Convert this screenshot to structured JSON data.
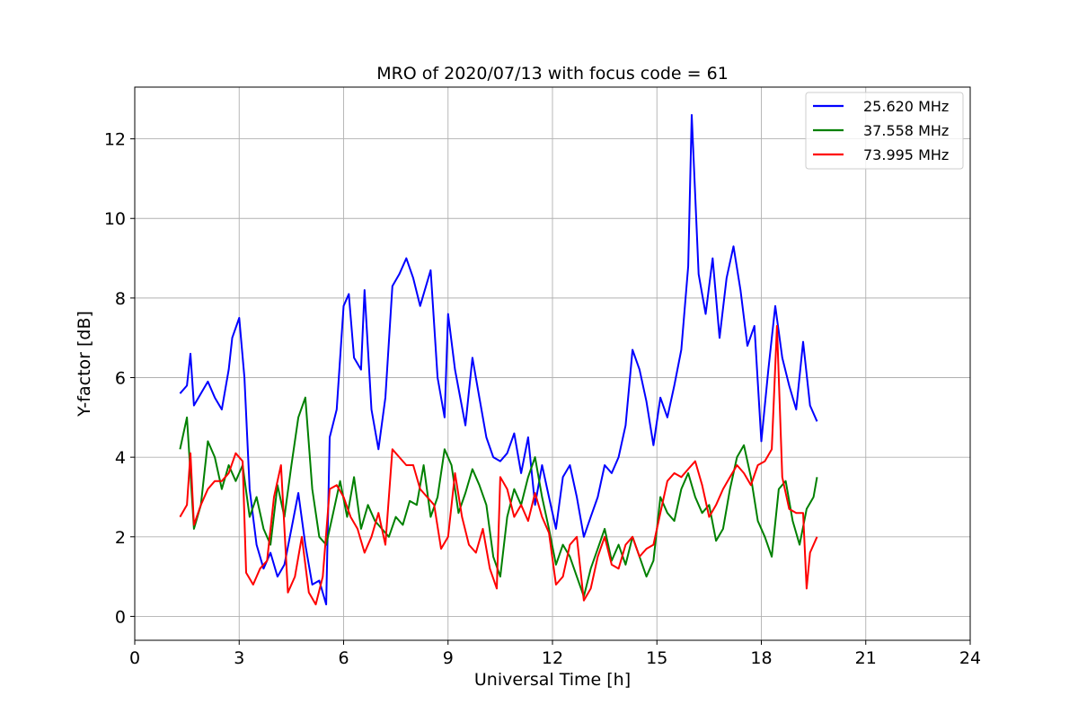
{
  "chart_data": {
    "type": "line",
    "title": "MRO of 2020/07/13 with focus code = 61",
    "xlabel": "Universal Time [h]",
    "ylabel": "Y-factor [dB]",
    "xlim": [
      0,
      24
    ],
    "ylim": [
      -0.6,
      13.3
    ],
    "xticks": [
      0,
      3,
      6,
      9,
      12,
      15,
      18,
      21,
      24
    ],
    "yticks": [
      0,
      2,
      4,
      6,
      8,
      10,
      12
    ],
    "grid": true,
    "legend_position": "top-right",
    "series": [
      {
        "name": "25.620 MHz",
        "color": "#0000ff",
        "points": [
          [
            1.3,
            5.6
          ],
          [
            1.5,
            5.8
          ],
          [
            1.6,
            6.6
          ],
          [
            1.7,
            5.3
          ],
          [
            1.9,
            5.6
          ],
          [
            2.1,
            5.9
          ],
          [
            2.3,
            5.5
          ],
          [
            2.5,
            5.2
          ],
          [
            2.7,
            6.2
          ],
          [
            2.8,
            7.0
          ],
          [
            3.0,
            7.5
          ],
          [
            3.15,
            6.0
          ],
          [
            3.3,
            3.2
          ],
          [
            3.5,
            1.8
          ],
          [
            3.7,
            1.2
          ],
          [
            3.9,
            1.6
          ],
          [
            4.1,
            1.0
          ],
          [
            4.3,
            1.3
          ],
          [
            4.5,
            2.2
          ],
          [
            4.7,
            3.1
          ],
          [
            4.9,
            1.8
          ],
          [
            5.1,
            0.8
          ],
          [
            5.3,
            0.9
          ],
          [
            5.5,
            0.3
          ],
          [
            5.6,
            4.5
          ],
          [
            5.8,
            5.2
          ],
          [
            6.0,
            7.8
          ],
          [
            6.15,
            8.1
          ],
          [
            6.3,
            6.5
          ],
          [
            6.5,
            6.2
          ],
          [
            6.6,
            8.2
          ],
          [
            6.8,
            5.2
          ],
          [
            7.0,
            4.2
          ],
          [
            7.2,
            5.5
          ],
          [
            7.4,
            8.3
          ],
          [
            7.6,
            8.6
          ],
          [
            7.8,
            9.0
          ],
          [
            8.0,
            8.5
          ],
          [
            8.2,
            7.8
          ],
          [
            8.5,
            8.7
          ],
          [
            8.7,
            6.0
          ],
          [
            8.9,
            5.0
          ],
          [
            9.0,
            7.6
          ],
          [
            9.2,
            6.2
          ],
          [
            9.5,
            4.8
          ],
          [
            9.7,
            6.5
          ],
          [
            9.9,
            5.5
          ],
          [
            10.1,
            4.5
          ],
          [
            10.3,
            4.0
          ],
          [
            10.5,
            3.9
          ],
          [
            10.7,
            4.1
          ],
          [
            10.9,
            4.6
          ],
          [
            11.1,
            3.6
          ],
          [
            11.3,
            4.5
          ],
          [
            11.5,
            2.8
          ],
          [
            11.7,
            3.8
          ],
          [
            11.9,
            3.0
          ],
          [
            12.1,
            2.2
          ],
          [
            12.3,
            3.5
          ],
          [
            12.5,
            3.8
          ],
          [
            12.7,
            3.0
          ],
          [
            12.9,
            2.0
          ],
          [
            13.1,
            2.5
          ],
          [
            13.3,
            3.0
          ],
          [
            13.5,
            3.8
          ],
          [
            13.7,
            3.6
          ],
          [
            13.9,
            4.0
          ],
          [
            14.1,
            4.8
          ],
          [
            14.3,
            6.7
          ],
          [
            14.5,
            6.2
          ],
          [
            14.7,
            5.4
          ],
          [
            14.9,
            4.3
          ],
          [
            15.1,
            5.5
          ],
          [
            15.3,
            5.0
          ],
          [
            15.5,
            5.8
          ],
          [
            15.7,
            6.7
          ],
          [
            15.9,
            8.8
          ],
          [
            16.0,
            12.6
          ],
          [
            16.2,
            8.6
          ],
          [
            16.4,
            7.6
          ],
          [
            16.6,
            9.0
          ],
          [
            16.8,
            7.0
          ],
          [
            17.0,
            8.5
          ],
          [
            17.2,
            9.3
          ],
          [
            17.4,
            8.2
          ],
          [
            17.6,
            6.8
          ],
          [
            17.8,
            7.3
          ],
          [
            18.0,
            4.4
          ],
          [
            18.2,
            6.2
          ],
          [
            18.4,
            7.8
          ],
          [
            18.6,
            6.5
          ],
          [
            18.8,
            5.8
          ],
          [
            19.0,
            5.2
          ],
          [
            19.2,
            6.9
          ],
          [
            19.4,
            5.3
          ],
          [
            19.6,
            4.9
          ]
        ]
      },
      {
        "name": "37.558 MHz",
        "color": "#008000",
        "points": [
          [
            1.3,
            4.2
          ],
          [
            1.5,
            5.0
          ],
          [
            1.7,
            2.2
          ],
          [
            1.9,
            2.8
          ],
          [
            2.1,
            4.4
          ],
          [
            2.3,
            4.0
          ],
          [
            2.5,
            3.2
          ],
          [
            2.7,
            3.8
          ],
          [
            2.9,
            3.4
          ],
          [
            3.1,
            3.8
          ],
          [
            3.3,
            2.5
          ],
          [
            3.5,
            3.0
          ],
          [
            3.7,
            2.2
          ],
          [
            3.9,
            1.8
          ],
          [
            4.1,
            3.3
          ],
          [
            4.3,
            2.5
          ],
          [
            4.5,
            3.8
          ],
          [
            4.7,
            5.0
          ],
          [
            4.9,
            5.5
          ],
          [
            5.1,
            3.2
          ],
          [
            5.3,
            2.0
          ],
          [
            5.5,
            1.8
          ],
          [
            5.7,
            2.6
          ],
          [
            5.9,
            3.4
          ],
          [
            6.1,
            2.5
          ],
          [
            6.3,
            3.5
          ],
          [
            6.5,
            2.2
          ],
          [
            6.7,
            2.8
          ],
          [
            6.9,
            2.4
          ],
          [
            7.1,
            2.2
          ],
          [
            7.3,
            2.0
          ],
          [
            7.5,
            2.5
          ],
          [
            7.7,
            2.3
          ],
          [
            7.9,
            2.9
          ],
          [
            8.1,
            2.8
          ],
          [
            8.3,
            3.8
          ],
          [
            8.5,
            2.5
          ],
          [
            8.7,
            3.0
          ],
          [
            8.9,
            4.2
          ],
          [
            9.1,
            3.8
          ],
          [
            9.3,
            2.6
          ],
          [
            9.5,
            3.1
          ],
          [
            9.7,
            3.7
          ],
          [
            9.9,
            3.3
          ],
          [
            10.1,
            2.8
          ],
          [
            10.3,
            1.5
          ],
          [
            10.5,
            1.0
          ],
          [
            10.7,
            2.5
          ],
          [
            10.9,
            3.2
          ],
          [
            11.1,
            2.8
          ],
          [
            11.3,
            3.5
          ],
          [
            11.5,
            4.0
          ],
          [
            11.7,
            3.0
          ],
          [
            11.9,
            2.2
          ],
          [
            12.1,
            1.3
          ],
          [
            12.3,
            1.8
          ],
          [
            12.5,
            1.5
          ],
          [
            12.7,
            1.0
          ],
          [
            12.9,
            0.5
          ],
          [
            13.1,
            1.2
          ],
          [
            13.3,
            1.7
          ],
          [
            13.5,
            2.2
          ],
          [
            13.7,
            1.4
          ],
          [
            13.9,
            1.8
          ],
          [
            14.1,
            1.3
          ],
          [
            14.3,
            2.0
          ],
          [
            14.5,
            1.5
          ],
          [
            14.7,
            1.0
          ],
          [
            14.9,
            1.4
          ],
          [
            15.1,
            3.0
          ],
          [
            15.3,
            2.6
          ],
          [
            15.5,
            2.4
          ],
          [
            15.7,
            3.2
          ],
          [
            15.9,
            3.6
          ],
          [
            16.1,
            3.0
          ],
          [
            16.3,
            2.6
          ],
          [
            16.5,
            2.8
          ],
          [
            16.7,
            1.9
          ],
          [
            16.9,
            2.2
          ],
          [
            17.1,
            3.2
          ],
          [
            17.3,
            4.0
          ],
          [
            17.5,
            4.3
          ],
          [
            17.7,
            3.5
          ],
          [
            17.9,
            2.4
          ],
          [
            18.1,
            2.0
          ],
          [
            18.3,
            1.5
          ],
          [
            18.5,
            3.2
          ],
          [
            18.7,
            3.4
          ],
          [
            18.9,
            2.4
          ],
          [
            19.1,
            1.8
          ],
          [
            19.3,
            2.7
          ],
          [
            19.5,
            3.0
          ],
          [
            19.6,
            3.5
          ]
        ]
      },
      {
        "name": "73.995 MHz",
        "color": "#ff0000",
        "points": [
          [
            1.3,
            2.5
          ],
          [
            1.5,
            2.8
          ],
          [
            1.6,
            4.1
          ],
          [
            1.7,
            2.3
          ],
          [
            1.9,
            2.8
          ],
          [
            2.1,
            3.2
          ],
          [
            2.3,
            3.4
          ],
          [
            2.5,
            3.4
          ],
          [
            2.7,
            3.6
          ],
          [
            2.9,
            4.1
          ],
          [
            3.1,
            3.9
          ],
          [
            3.2,
            1.1
          ],
          [
            3.4,
            0.8
          ],
          [
            3.6,
            1.2
          ],
          [
            3.8,
            1.4
          ],
          [
            4.0,
            3.0
          ],
          [
            4.2,
            3.8
          ],
          [
            4.4,
            0.6
          ],
          [
            4.6,
            1.0
          ],
          [
            4.8,
            2.0
          ],
          [
            5.0,
            0.6
          ],
          [
            5.2,
            0.3
          ],
          [
            5.4,
            1.0
          ],
          [
            5.6,
            3.2
          ],
          [
            5.8,
            3.3
          ],
          [
            6.0,
            3.0
          ],
          [
            6.2,
            2.5
          ],
          [
            6.4,
            2.2
          ],
          [
            6.6,
            1.6
          ],
          [
            6.8,
            2.0
          ],
          [
            7.0,
            2.6
          ],
          [
            7.2,
            1.8
          ],
          [
            7.4,
            4.2
          ],
          [
            7.6,
            4.0
          ],
          [
            7.8,
            3.8
          ],
          [
            8.0,
            3.8
          ],
          [
            8.2,
            3.2
          ],
          [
            8.4,
            3.0
          ],
          [
            8.6,
            2.8
          ],
          [
            8.8,
            1.7
          ],
          [
            9.0,
            2.0
          ],
          [
            9.2,
            3.6
          ],
          [
            9.4,
            2.5
          ],
          [
            9.6,
            1.8
          ],
          [
            9.8,
            1.6
          ],
          [
            10.0,
            2.2
          ],
          [
            10.2,
            1.2
          ],
          [
            10.4,
            0.7
          ],
          [
            10.5,
            3.5
          ],
          [
            10.7,
            3.2
          ],
          [
            10.9,
            2.5
          ],
          [
            11.1,
            2.8
          ],
          [
            11.3,
            2.4
          ],
          [
            11.5,
            3.1
          ],
          [
            11.7,
            2.5
          ],
          [
            11.9,
            2.1
          ],
          [
            12.1,
            0.8
          ],
          [
            12.3,
            1.0
          ],
          [
            12.5,
            1.8
          ],
          [
            12.7,
            2.0
          ],
          [
            12.9,
            0.4
          ],
          [
            13.1,
            0.7
          ],
          [
            13.3,
            1.5
          ],
          [
            13.5,
            2.0
          ],
          [
            13.7,
            1.3
          ],
          [
            13.9,
            1.2
          ],
          [
            14.1,
            1.8
          ],
          [
            14.3,
            2.0
          ],
          [
            14.5,
            1.5
          ],
          [
            14.7,
            1.7
          ],
          [
            14.9,
            1.8
          ],
          [
            15.1,
            2.6
          ],
          [
            15.3,
            3.4
          ],
          [
            15.5,
            3.6
          ],
          [
            15.7,
            3.5
          ],
          [
            15.9,
            3.7
          ],
          [
            16.1,
            3.9
          ],
          [
            16.3,
            3.3
          ],
          [
            16.5,
            2.5
          ],
          [
            16.7,
            2.8
          ],
          [
            16.9,
            3.2
          ],
          [
            17.1,
            3.5
          ],
          [
            17.3,
            3.8
          ],
          [
            17.5,
            3.6
          ],
          [
            17.7,
            3.3
          ],
          [
            17.9,
            3.8
          ],
          [
            18.1,
            3.9
          ],
          [
            18.3,
            4.2
          ],
          [
            18.45,
            7.3
          ],
          [
            18.6,
            3.5
          ],
          [
            18.8,
            2.7
          ],
          [
            19.0,
            2.6
          ],
          [
            19.2,
            2.6
          ],
          [
            19.3,
            0.7
          ],
          [
            19.4,
            1.6
          ],
          [
            19.6,
            2.0
          ]
        ]
      }
    ]
  }
}
